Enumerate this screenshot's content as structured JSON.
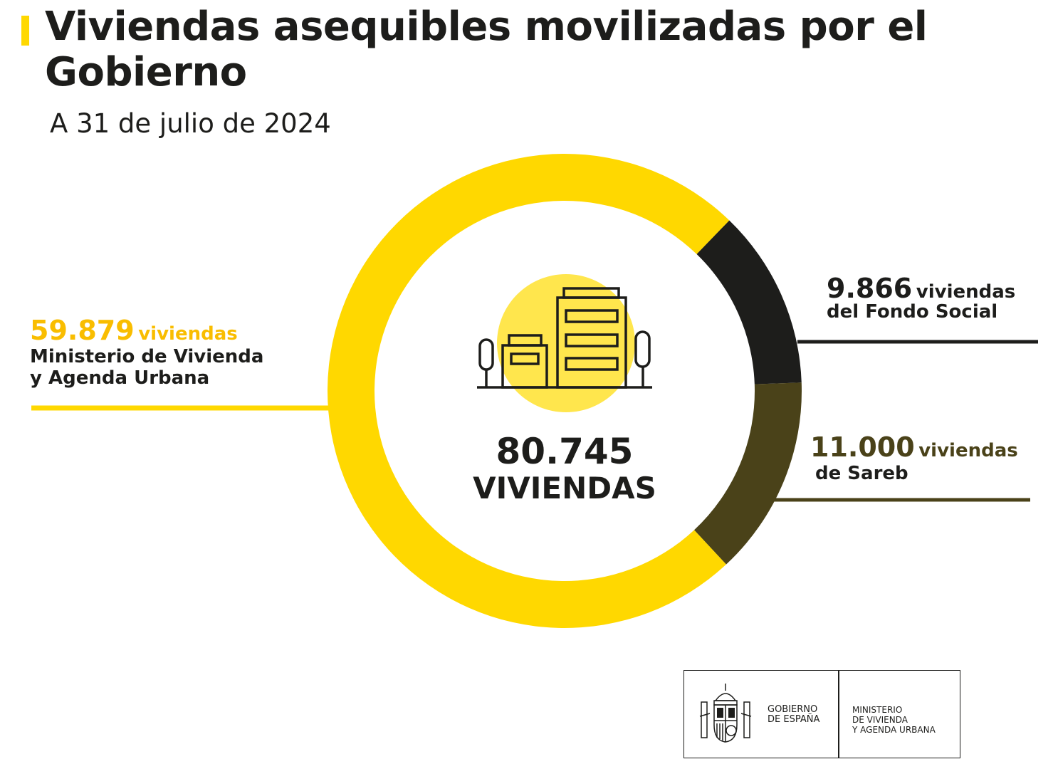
{
  "header": {
    "title": "Viviendas asequibles movilizadas por el Gobierno",
    "subtitle": "A 31 de julio de 2024"
  },
  "center": {
    "total": "80.745",
    "unit": "VIVIENDAS",
    "icon": "buildings-icon"
  },
  "labels": {
    "ministerio": {
      "number": "59.879",
      "unit": "viviendas",
      "line1": "Ministerio de Vivienda",
      "line2": "y Agenda Urbana"
    },
    "fondo": {
      "number": "9.866",
      "unit": "viviendas",
      "line1": "del Fondo Social"
    },
    "sareb": {
      "number": "11.000",
      "unit": "viviendas",
      "line1": "de Sareb"
    }
  },
  "footer": {
    "gov_line1": "GOBIERNO",
    "gov_line2": "DE ESPAÑA",
    "min_line1": "MINISTERIO",
    "min_line2": "DE VIVIENDA",
    "min_line3": "Y AGENDA URBANA",
    "crest_icon": "coat-of-arms-icon"
  },
  "colors": {
    "ministerio": "#ffd800",
    "fondo": "#1d1d1b",
    "sareb": "#4a4219",
    "label_ministerio": "#f9bd00",
    "icon_circle": "#ffe64d"
  },
  "chart_data": {
    "type": "pie",
    "subtype": "donut",
    "title": "Viviendas asequibles movilizadas por el Gobierno",
    "subtitle": "A 31 de julio de 2024",
    "total": 80745,
    "series": [
      {
        "name": "Fondo Social",
        "value": 9866,
        "color": "#1d1d1b"
      },
      {
        "name": "Sareb",
        "value": 11000,
        "color": "#4a4219"
      },
      {
        "name": "Ministerio de Vivienda y Agenda Urbana",
        "value": 59879,
        "color": "#ffd800"
      }
    ],
    "legend": "none"
  }
}
